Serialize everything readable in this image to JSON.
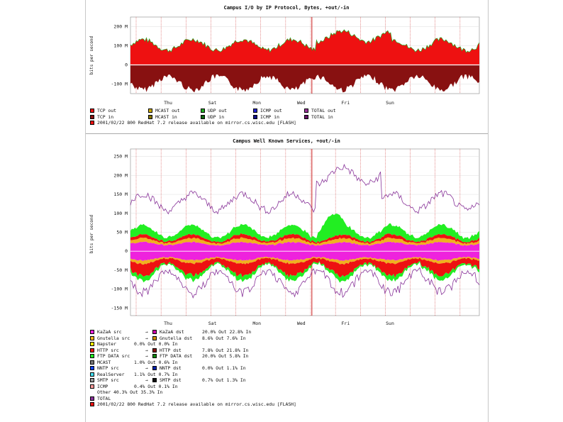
{
  "colors": {
    "background": "#ffffff",
    "grid": "#dddddd",
    "day_line": "#cc2222",
    "tcp": "#ee1111",
    "tcp_in": "#881111",
    "mcast": "#ccaa00",
    "udp": "#22aa22",
    "icmp": "#2222cc",
    "total": "#993399",
    "kazaa": "#ee22dd",
    "gnutella": "#f0b020",
    "napster": "#ffee00",
    "http": "#ee1111",
    "ftp": "#22ee22",
    "mcast_svc": "#777777",
    "nntp": "#1144ff",
    "realserver": "#44ddee",
    "smtp": "#999999",
    "icmp_svc": "#ff9999",
    "other": "#a08080",
    "total_line": "#883399"
  },
  "top_chart": {
    "title": "Campus I/O by IP Protocol, Bytes, +out/-in",
    "ylabel": "bits per second",
    "yticks": [
      "200 M",
      "100 M",
      "0",
      "-100 M"
    ],
    "days": [
      "Thu",
      "Sat",
      "Mon",
      "Wed",
      "Fri",
      "Sun"
    ]
  },
  "bottom_chart": {
    "title": "Campus Well Known Services, +out/-in",
    "ylabel": "bits per second",
    "yticks": [
      "250 M",
      "200 M",
      "150 M",
      "100 M",
      "50 M",
      "0",
      "-50 M",
      "-100 M",
      "-150 M"
    ],
    "days": [
      "Thu",
      "Sat",
      "Mon",
      "Wed",
      "Fri",
      "Sun"
    ]
  },
  "top_legend": [
    {
      "icon": "tcp-out-swatch",
      "color": "#ee1111",
      "text": "TCP out"
    },
    {
      "icon": "mcast-out-swatch",
      "color": "#ccaa00",
      "text": "MCAST out"
    },
    {
      "icon": "udp-out-swatch",
      "color": "#22aa22",
      "text": "UDP out"
    },
    {
      "icon": "icmp-out-swatch",
      "color": "#2222cc",
      "text": "ICMP out"
    },
    {
      "icon": "total-out-swatch",
      "color": "#993399",
      "text": "TOTAL out"
    },
    {
      "icon": "tcp-in-swatch",
      "color": "#881111",
      "text": "TCP in"
    },
    {
      "icon": "mcast-in-swatch",
      "color": "#887700",
      "text": "MCAST in"
    },
    {
      "icon": "udp-in-swatch",
      "color": "#116611",
      "text": "UDP in"
    },
    {
      "icon": "icmp-in-swatch",
      "color": "#111188",
      "text": "ICMP in"
    },
    {
      "icon": "total-in-swatch",
      "color": "#661166",
      "text": "TOTAL in"
    }
  ],
  "top_footer": "2001/02/22 800 RedHat 7.2 release available on mirror.cs.wisc.edu [FLASH]",
  "bottom_legend": [
    {
      "c1": "#ee22dd",
      "t1": "KaZaA src",
      "arrow": "→",
      "c2": "#cc00aa",
      "t2": "KaZaA dst",
      "t3": "20.0% Out  22.8% In"
    },
    {
      "c1": "#f0b020",
      "t1": "Gnutella src",
      "arrow": "→",
      "c2": "#d09000",
      "t2": "Gnutella dst",
      "t3": "8.6% Out  7.6% In"
    },
    {
      "c1": "#ffee00",
      "t1": "Napster",
      "arrow": "",
      "c2": "",
      "t2": "",
      "t3": "0.0% Out  0.0% In"
    },
    {
      "c1": "#ee1111",
      "t1": "HTTP src",
      "arrow": "→",
      "c2": "#881111",
      "t2": "HTTP dst",
      "t3": "7.8% Out  21.8% In"
    },
    {
      "c1": "#22ee22",
      "t1": "FTP DATA src",
      "arrow": "→",
      "c2": "#118811",
      "t2": "FTP DATA dst",
      "t3": "20.0% Out  5.8% In"
    },
    {
      "c1": "#777777",
      "t1": "MCAST",
      "arrow": "",
      "c2": "",
      "t2": "",
      "t3": "1.0% Out  0.6% In"
    },
    {
      "c1": "#1144ff",
      "t1": "NNTP src",
      "arrow": "→",
      "c2": "#0022aa",
      "t2": "NNTP dst",
      "t3": "0.0% Out  1.1% In"
    },
    {
      "c1": "#44ddee",
      "t1": "RealServer",
      "arrow": "",
      "c2": "",
      "t2": "",
      "t3": "1.1% Out  0.7% In"
    },
    {
      "c1": "#999999",
      "t1": "SMTP src",
      "arrow": "→",
      "c2": "#111111",
      "t2": "SMTP dst",
      "t3": "0.7% Out  1.3% In"
    },
    {
      "c1": "#ff9999",
      "t1": "ICMP",
      "arrow": "",
      "c2": "",
      "t2": "",
      "t3": "0.4% Out  0.1% In"
    },
    {
      "c1": "",
      "t1": "Other 40.3% Out  35.3% In",
      "arrow": "",
      "c2": "",
      "t2": "",
      "t3": ""
    },
    {
      "c1": "#883399",
      "t1": "TOTAL",
      "arrow": "",
      "c2": "",
      "t2": "",
      "t3": ""
    }
  ],
  "bottom_footer": "2001/02/22 800 RedHat 7.2 release available on mirror.cs.wisc.edu [FLASH]"
}
